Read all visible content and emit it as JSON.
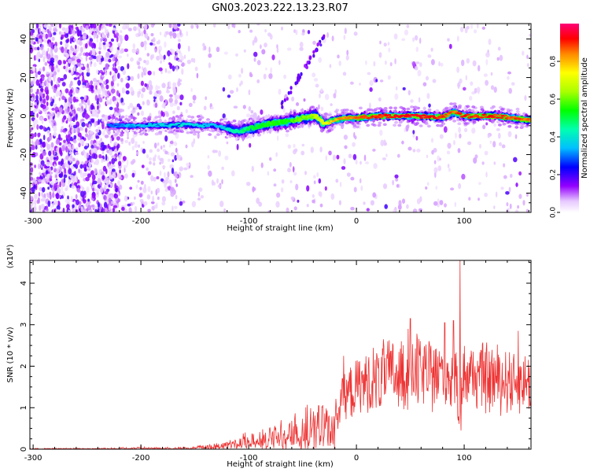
{
  "title": "GN03.2023.222.13.23.R07",
  "chart_data": [
    {
      "type": "heatmap",
      "xlabel": "Height of straight line (km)",
      "ylabel": "Frequency (Hz)",
      "xlim": [
        -303,
        162
      ],
      "ylim": [
        -50,
        48
      ],
      "xticks": [
        "-300",
        "-200",
        "-100",
        "0",
        "100"
      ],
      "xtick_values": [
        -300,
        -200,
        -100,
        0,
        100
      ],
      "yticks": [
        "-40",
        "-20",
        "0",
        "20",
        "40"
      ],
      "ytick_values": [
        -40,
        -20,
        0,
        20,
        40
      ],
      "colorbar": {
        "label": "Normalized spectral amplitude",
        "range": [
          0,
          1
        ],
        "ticks": [
          "0.0",
          "0.2",
          "0.4",
          "0.6",
          "0.8"
        ],
        "tick_values": [
          0,
          0.2,
          0.4,
          0.6,
          0.8
        ]
      },
      "ridge": {
        "x": [
          -230,
          -200,
          -160,
          -130,
          -110,
          -95,
          -80,
          -65,
          -50,
          -38,
          -30,
          -20,
          -10,
          0,
          20,
          50,
          80,
          90,
          100,
          130,
          162
        ],
        "freq": [
          -5,
          -5,
          -4.5,
          -5,
          -8,
          -6,
          -4,
          -3,
          -1,
          0,
          -4,
          -2,
          -1,
          -1,
          0,
          0,
          -0.5,
          2,
          0,
          0,
          -2
        ],
        "amplitude": [
          0.3,
          0.35,
          0.4,
          0.35,
          0.45,
          0.5,
          0.55,
          0.55,
          0.6,
          0.65,
          0.7,
          0.8,
          0.85,
          0.85,
          0.9,
          0.95,
          0.9,
          0.85,
          0.9,
          0.9,
          0.85
        ]
      }
    },
    {
      "type": "line",
      "xlabel": "Height of straight line (km)",
      "ylabel": "SNR (10 * v/v)",
      "y_multiplier_label": "(x10⁴)",
      "xlim": [
        -303,
        162
      ],
      "ylim": [
        0,
        4.55
      ],
      "xticks": [
        "-300",
        "-200",
        "-100",
        "0",
        "100"
      ],
      "xtick_values": [
        -300,
        -200,
        -100,
        0,
        100
      ],
      "yticks": [
        "0",
        "1",
        "2",
        "3",
        "4"
      ],
      "ytick_values": [
        0,
        1,
        2,
        3,
        4
      ],
      "series_color": "#ee3333",
      "envelope": {
        "x": [
          -303,
          -250,
          -200,
          -160,
          -150,
          -130,
          -110,
          -90,
          -70,
          -50,
          -30,
          -15,
          -8,
          0,
          10,
          25,
          40,
          55,
          70,
          85,
          92,
          95,
          98,
          105,
          120,
          140,
          162
        ],
        "y": [
          0.02,
          0.02,
          0.04,
          0.04,
          0.06,
          0.12,
          0.25,
          0.4,
          0.55,
          0.75,
          0.95,
          1.2,
          1.6,
          1.75,
          1.95,
          2.1,
          2.2,
          2.3,
          2.2,
          2.25,
          2.0,
          1.2,
          2.1,
          2.2,
          2.1,
          2.05,
          1.9
        ]
      },
      "spikes": [
        {
          "x": -200,
          "y": 0.1
        },
        {
          "x": -105,
          "y": 0.38
        },
        {
          "x": -70,
          "y": 0.7
        },
        {
          "x": -35,
          "y": 1.05
        },
        {
          "x": -13,
          "y": 1.7
        },
        {
          "x": -12,
          "y": 2.25
        },
        {
          "x": 25,
          "y": 2.65
        },
        {
          "x": 48,
          "y": 2.9
        },
        {
          "x": 50,
          "y": 3.15
        },
        {
          "x": 82,
          "y": 3.05
        },
        {
          "x": 90,
          "y": 3.1
        },
        {
          "x": 96,
          "y": 4.55
        },
        {
          "x": 97,
          "y": 0.45
        },
        {
          "x": 150,
          "y": 2.85
        }
      ]
    }
  ]
}
